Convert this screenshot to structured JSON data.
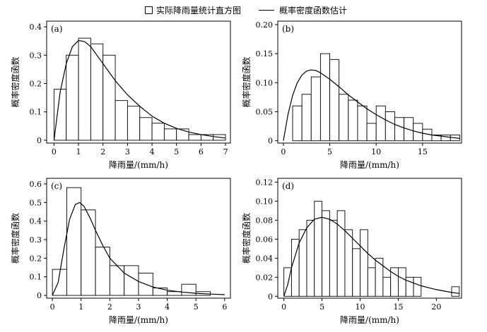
{
  "legend": {
    "histogram_label": "实际降雨量统计直方图",
    "curve_label": "概率密度函数估计"
  },
  "chart_data": [
    {
      "type": "bar",
      "panel": "(a)",
      "xlabel": "降雨量/(mm/h)",
      "ylabel": "概率密度函数",
      "xlim": [
        -0.3,
        7.2
      ],
      "ylim": [
        -0.01,
        0.42
      ],
      "xticks": [
        0,
        1,
        2,
        3,
        4,
        5,
        6,
        7
      ],
      "yticks": [
        0,
        0.1,
        0.2,
        0.3,
        0.4
      ],
      "ytick_labels": [
        "0",
        "0.1",
        "0.2",
        "0.3",
        "0.4"
      ],
      "bins": {
        "start": 0,
        "width": 0.5,
        "values": [
          0.18,
          0.3,
          0.36,
          0.34,
          0.3,
          0.14,
          0.12,
          0.08,
          0.06,
          0.04,
          0.04,
          0.02,
          0.02,
          0.02
        ]
      },
      "curve": {
        "x": [
          0,
          0.25,
          0.5,
          0.75,
          1,
          1.25,
          1.5,
          1.75,
          2,
          2.5,
          3,
          3.5,
          4,
          4.5,
          5,
          5.5,
          6,
          6.5,
          7
        ],
        "y": [
          0,
          0.17,
          0.27,
          0.33,
          0.352,
          0.348,
          0.33,
          0.3,
          0.27,
          0.21,
          0.16,
          0.12,
          0.085,
          0.06,
          0.042,
          0.029,
          0.02,
          0.013,
          0.008
        ]
      }
    },
    {
      "type": "bar",
      "panel": "(b)",
      "xlabel": "降雨量/(mm/h)",
      "ylabel": "概率密度函数",
      "xlim": [
        -0.6,
        19.2
      ],
      "ylim": [
        -0.004,
        0.206
      ],
      "xticks": [
        0,
        5,
        10,
        15
      ],
      "yticks": [
        0,
        0.05,
        0.1,
        0.15,
        0.2
      ],
      "ytick_labels": [
        "0",
        "0.05",
        "0.10",
        "0.15",
        "0.20"
      ],
      "bins": {
        "start": 1,
        "width": 1,
        "values": [
          0.06,
          0.08,
          0.11,
          0.15,
          0.14,
          0.08,
          0.07,
          0.06,
          0.03,
          0.06,
          0.05,
          0.04,
          0.04,
          0.03,
          0.02,
          0.01,
          0.01,
          0.01
        ]
      },
      "curve": {
        "x": [
          0,
          0.5,
          1,
          1.5,
          2,
          2.5,
          3,
          3.5,
          4,
          5,
          6,
          7,
          8,
          9,
          10,
          11,
          12,
          13,
          14,
          15,
          16,
          17,
          18,
          19
        ],
        "y": [
          0,
          0.045,
          0.078,
          0.1,
          0.113,
          0.12,
          0.122,
          0.121,
          0.117,
          0.106,
          0.093,
          0.079,
          0.067,
          0.055,
          0.045,
          0.036,
          0.028,
          0.022,
          0.017,
          0.013,
          0.01,
          0.008,
          0.006,
          0.004
        ]
      }
    },
    {
      "type": "bar",
      "panel": "(c)",
      "xlabel": "降雨量/(mm/h)",
      "ylabel": "概率密度函数",
      "xlim": [
        -0.2,
        6.2
      ],
      "ylim": [
        -0.015,
        0.63
      ],
      "xticks": [
        0,
        1,
        2,
        3,
        4,
        5,
        6
      ],
      "yticks": [
        0,
        0.1,
        0.2,
        0.3,
        0.4,
        0.5,
        0.6
      ],
      "ytick_labels": [
        "0",
        "0.1",
        "0.2",
        "0.3",
        "0.4",
        "0.5",
        "0.6"
      ],
      "bins": {
        "start": 0,
        "width": 0.5,
        "values": [
          0.14,
          0.58,
          0.46,
          0.26,
          0.16,
          0.16,
          0.12,
          0.04,
          0.02,
          0.06,
          0.02
        ]
      },
      "curve": {
        "x": [
          0,
          0.2,
          0.4,
          0.6,
          0.8,
          0.95,
          1.1,
          1.3,
          1.5,
          1.75,
          2,
          2.5,
          3,
          3.5,
          4,
          4.5,
          5,
          5.5,
          6
        ],
        "y": [
          0,
          0.07,
          0.25,
          0.41,
          0.49,
          0.5,
          0.48,
          0.42,
          0.35,
          0.27,
          0.2,
          0.12,
          0.075,
          0.045,
          0.028,
          0.018,
          0.011,
          0.007,
          0.004
        ]
      }
    },
    {
      "type": "bar",
      "panel": "(d)",
      "xlabel": "降雨量/(mm/h)",
      "ylabel": "概率密度函数",
      "xlim": [
        -0.8,
        23.3
      ],
      "ylim": [
        -0.002,
        0.124
      ],
      "xticks": [
        0,
        5,
        10,
        15,
        20
      ],
      "yticks": [
        0,
        0.02,
        0.04,
        0.06,
        0.08,
        0.1,
        0.12
      ],
      "ytick_labels": [
        "0",
        "0.02",
        "0.04",
        "0.06",
        "0.08",
        "0.10",
        "0.12"
      ],
      "bins": {
        "start": 0,
        "width": 1,
        "values": [
          0.03,
          0.06,
          0.07,
          0.08,
          0.1,
          0.09,
          0.08,
          0.09,
          0.07,
          0.05,
          0.07,
          0.03,
          0.04,
          0.02,
          0.03,
          0.03,
          0.02,
          0.02,
          0.0,
          0.0,
          0.0,
          0.0,
          0.01
        ]
      },
      "curve": {
        "x": [
          0,
          0.5,
          1,
          2,
          3,
          4,
          5,
          6,
          7,
          8,
          9,
          10,
          11,
          12,
          13,
          14,
          15,
          16,
          17,
          18,
          19,
          20,
          21,
          22,
          23
        ],
        "y": [
          0,
          0.012,
          0.03,
          0.056,
          0.072,
          0.081,
          0.083,
          0.081,
          0.076,
          0.069,
          0.061,
          0.053,
          0.045,
          0.038,
          0.032,
          0.026,
          0.021,
          0.017,
          0.014,
          0.011,
          0.009,
          0.007,
          0.0055,
          0.004,
          0.003
        ]
      }
    }
  ]
}
